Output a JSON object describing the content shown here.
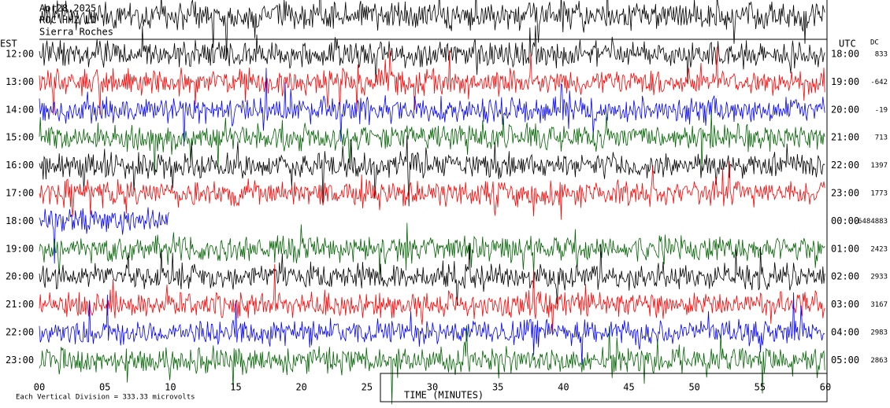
{
  "header": {
    "date": "Apr28,2025",
    "station": "ROC HHZ LD",
    "scale": "Sierra Roches"
  },
  "left_axis_title": "EST",
  "right_axis_title": "UTC",
  "dc_title": "DC",
  "rows": [
    {
      "est": "12:00",
      "utc": "18:00",
      "dc": "833",
      "color": "#000000"
    },
    {
      "est": "13:00",
      "utc": "19:00",
      "dc": "-642",
      "color": "#ff0000"
    },
    {
      "est": "14:00",
      "utc": "20:00",
      "dc": "-19",
      "color": "#0000ff"
    },
    {
      "est": "15:00",
      "utc": "21:00",
      "dc": "713",
      "color": "#006400"
    },
    {
      "est": "16:00",
      "utc": "22:00",
      "dc": "1397",
      "color": "#000000"
    },
    {
      "est": "17:00",
      "utc": "23:00",
      "dc": "1773",
      "color": "#ff0000"
    },
    {
      "est": "18:00",
      "utc": "00:00",
      "dc": "-6484883",
      "color": "#0000ff"
    },
    {
      "est": "19:00",
      "utc": "01:00",
      "dc": "2423",
      "color": "#006400"
    },
    {
      "est": "20:00",
      "utc": "02:00",
      "dc": "2933",
      "color": "#000000"
    },
    {
      "est": "21:00",
      "utc": "03:00",
      "dc": "3167",
      "color": "#ff0000"
    },
    {
      "est": "22:00",
      "utc": "04:00",
      "dc": "2983",
      "color": "#0000ff"
    },
    {
      "est": "23:00",
      "utc": "05:00",
      "dc": "2863",
      "color": "#006400"
    }
  ],
  "x_axis": {
    "ticks": [
      "00",
      "05",
      "10",
      "15",
      "20",
      "25",
      "30",
      "35",
      "40",
      "45",
      "50",
      "55",
      "60"
    ],
    "title": "TIME (MINUTES)"
  },
  "footer": "Each Vertical Division =  333.33 microvolts"
}
